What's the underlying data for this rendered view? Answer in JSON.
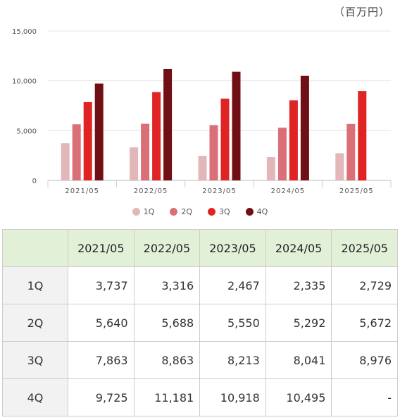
{
  "unit_label": "（百万円）",
  "colors": {
    "1Q": "#e3b7b9",
    "2Q": "#da6f78",
    "3Q": "#e02424",
    "4Q": "#700f16"
  },
  "chart_data": {
    "type": "bar",
    "categories": [
      "2021/05",
      "2022/05",
      "2023/05",
      "2024/05",
      "2025/05"
    ],
    "series": [
      {
        "name": "1Q",
        "values": [
          3737,
          3316,
          2467,
          2335,
          2729
        ]
      },
      {
        "name": "2Q",
        "values": [
          5640,
          5688,
          5550,
          5292,
          5672
        ]
      },
      {
        "name": "3Q",
        "values": [
          7863,
          8863,
          8213,
          8041,
          8976
        ]
      },
      {
        "name": "4Q",
        "values": [
          9725,
          11181,
          10918,
          10495,
          null
        ]
      }
    ],
    "ylim": [
      0,
      15000
    ],
    "yticks": [
      "0",
      "5,000",
      "10,000",
      "15,000"
    ],
    "grid": true,
    "legend": "bottom"
  },
  "table": {
    "headers": [
      "",
      "2021/05",
      "2022/05",
      "2023/05",
      "2024/05",
      "2025/05"
    ],
    "rows": [
      {
        "label": "1Q",
        "cells": [
          "3,737",
          "3,316",
          "2,467",
          "2,335",
          "2,729"
        ]
      },
      {
        "label": "2Q",
        "cells": [
          "5,640",
          "5,688",
          "5,550",
          "5,292",
          "5,672"
        ]
      },
      {
        "label": "3Q",
        "cells": [
          "7,863",
          "8,863",
          "8,213",
          "8,041",
          "8,976"
        ]
      },
      {
        "label": "4Q",
        "cells": [
          "9,725",
          "11,181",
          "10,918",
          "10,495",
          "-"
        ]
      }
    ]
  }
}
